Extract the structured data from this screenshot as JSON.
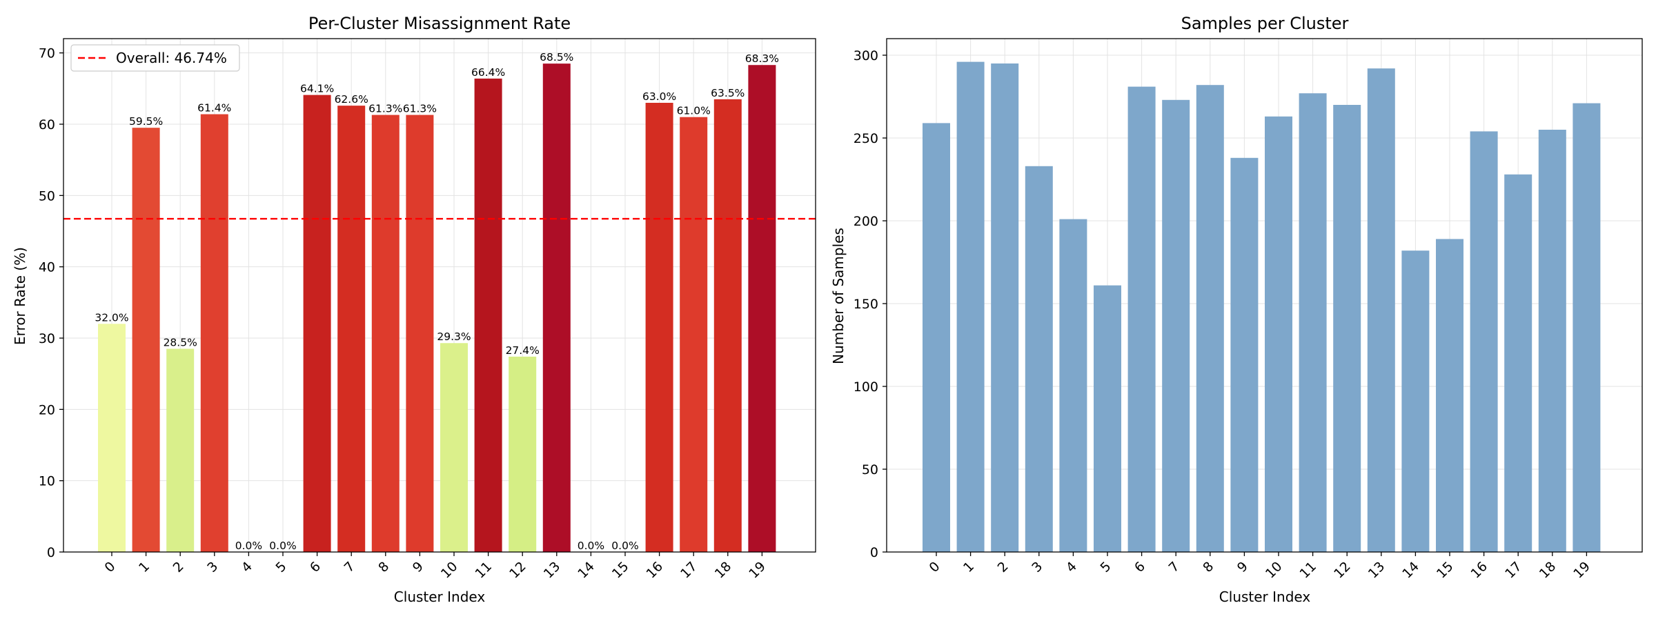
{
  "chart_data": [
    {
      "type": "bar",
      "title": "Per-Cluster Misassignment Rate",
      "xlabel": "Cluster Index",
      "ylabel": "Error Rate (%)",
      "categories": [
        "0",
        "1",
        "2",
        "3",
        "4",
        "5",
        "6",
        "7",
        "8",
        "9",
        "10",
        "11",
        "12",
        "13",
        "14",
        "15",
        "16",
        "17",
        "18",
        "19"
      ],
      "values": [
        32.0,
        59.5,
        28.5,
        61.4,
        0.0,
        0.0,
        64.1,
        62.6,
        61.3,
        61.3,
        29.3,
        66.4,
        27.4,
        68.5,
        0.0,
        0.0,
        63.0,
        61.0,
        63.5,
        68.3
      ],
      "data_labels": [
        "32.0%",
        "59.5%",
        "28.5%",
        "61.4%",
        "0.0%",
        "0.0%",
        "64.1%",
        "62.6%",
        "61.3%",
        "61.3%",
        "29.3%",
        "66.4%",
        "27.4%",
        "68.5%",
        "0.0%",
        "0.0%",
        "63.0%",
        "61.0%",
        "63.5%",
        "68.3%"
      ],
      "bar_colors": [
        "#eef8a0",
        "#e34a33",
        "#d9ef8b",
        "#e0402f",
        "#fff",
        "#fff",
        "#c8221f",
        "#d42d22",
        "#de3b2c",
        "#de3b2c",
        "#dbf08b",
        "#b5151e",
        "#d5ee85",
        "#ad0e27",
        "#fff",
        "#fff",
        "#d42d22",
        "#de3b2c",
        "#d42d22",
        "#ad0e27"
      ],
      "ylim": [
        0,
        72
      ],
      "yticks": [
        0,
        10,
        20,
        30,
        40,
        50,
        60,
        70
      ],
      "reference_line": {
        "value": 46.74,
        "label": "Overall: 46.74%",
        "color": "#ff0000",
        "style": "dashed"
      },
      "legend": {
        "position": "top-left",
        "entries": [
          "Overall: 46.74%"
        ]
      },
      "grid": true
    },
    {
      "type": "bar",
      "title": "Samples per Cluster",
      "xlabel": "Cluster Index",
      "ylabel": "Number of Samples",
      "categories": [
        "0",
        "1",
        "2",
        "3",
        "4",
        "5",
        "6",
        "7",
        "8",
        "9",
        "10",
        "11",
        "12",
        "13",
        "14",
        "15",
        "16",
        "17",
        "18",
        "19"
      ],
      "values": [
        259,
        296,
        295,
        233,
        201,
        161,
        281,
        273,
        282,
        238,
        263,
        277,
        270,
        292,
        182,
        189,
        254,
        228,
        255,
        271
      ],
      "color": "#7ea7cb",
      "ylim": [
        0,
        310
      ],
      "yticks": [
        0,
        50,
        100,
        150,
        200,
        250,
        300
      ],
      "grid": true
    }
  ]
}
